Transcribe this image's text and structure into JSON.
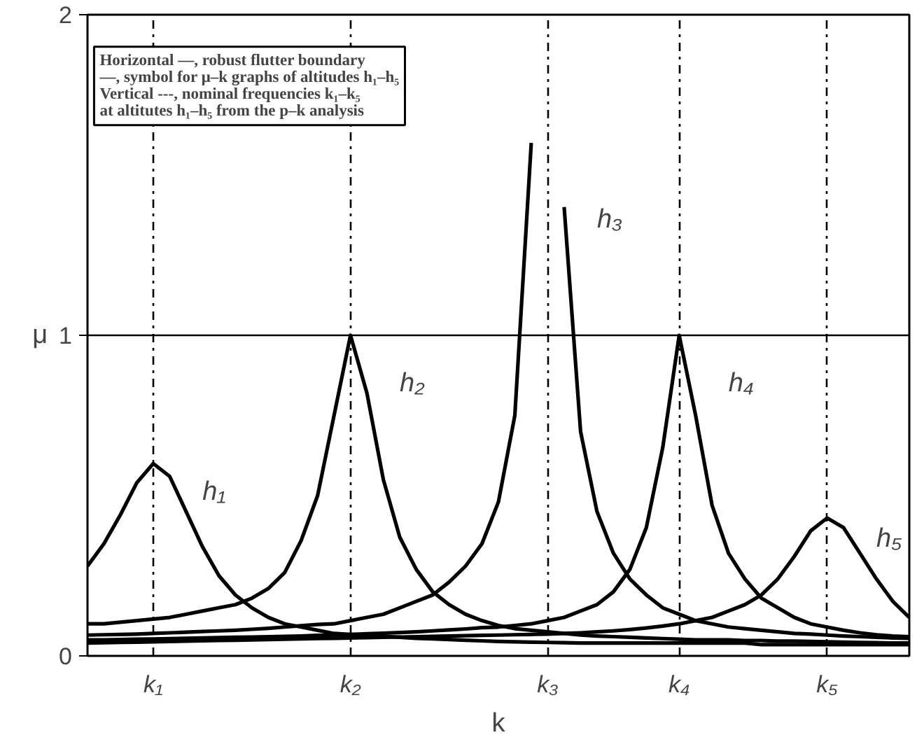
{
  "chart_data": {
    "type": "line",
    "xlabel": "k",
    "ylabel": "μ",
    "categories": [
      null,
      null,
      null,
      null,
      "k₁",
      null,
      null,
      null,
      null,
      null,
      null,
      null,
      null,
      null,
      null,
      null,
      "k₂",
      null,
      null,
      null,
      null,
      null,
      null,
      null,
      null,
      null,
      null,
      null,
      "k₃",
      null,
      null,
      null,
      null,
      null,
      null,
      null,
      "k₄",
      null,
      null,
      null,
      null,
      null,
      null,
      null,
      null,
      "k₅",
      null,
      null,
      null,
      null,
      null
    ],
    "ylim": [
      0,
      2
    ],
    "yticks": [
      0,
      1,
      2
    ],
    "grid": "x",
    "legend": false,
    "marker": "none",
    "line_style": "solid",
    "series": [
      {
        "name": "h₁",
        "color": "#000000",
        "values": [
          0.28,
          0.35,
          0.44,
          0.54,
          0.6,
          0.56,
          0.45,
          0.34,
          0.25,
          0.19,
          0.15,
          0.12,
          0.1,
          0.09,
          0.08,
          0.07,
          0.067,
          0.064,
          0.061,
          0.058,
          0.055,
          0.053,
          0.051,
          0.049,
          0.047,
          0.045,
          0.044,
          0.043,
          0.042,
          0.041,
          0.04,
          0.04,
          0.04,
          0.04,
          0.04,
          0.04,
          0.04,
          0.04,
          0.04,
          0.04,
          0.04,
          0.035,
          0.035,
          0.035,
          0.035,
          0.035,
          0.035,
          0.035,
          0.035,
          0.035,
          0.035
        ]
      },
      {
        "name": "h₂",
        "color": "#000000",
        "values": [
          0.1,
          0.1,
          0.105,
          0.11,
          0.115,
          0.12,
          0.13,
          0.14,
          0.15,
          0.16,
          0.18,
          0.21,
          0.26,
          0.36,
          0.5,
          0.75,
          1.0,
          0.82,
          0.55,
          0.37,
          0.27,
          0.2,
          0.16,
          0.13,
          0.11,
          0.095,
          0.085,
          0.08,
          0.075,
          0.07,
          0.065,
          0.062,
          0.06,
          0.058,
          0.056,
          0.054,
          0.052,
          0.05,
          0.05,
          0.05,
          0.048,
          0.048,
          0.046,
          0.046,
          0.045,
          0.044,
          0.043,
          0.042,
          0.041,
          0.04,
          0.04
        ]
      },
      {
        "name": "h₃",
        "color": "#000000",
        "values": [
          0.065,
          0.066,
          0.067,
          0.068,
          0.07,
          0.072,
          0.074,
          0.076,
          0.078,
          0.08,
          0.083,
          0.086,
          0.09,
          0.094,
          0.098,
          0.1,
          0.11,
          0.12,
          0.13,
          0.15,
          0.17,
          0.19,
          0.23,
          0.28,
          0.35,
          0.48,
          0.75,
          1.6,
          null,
          1.4,
          0.7,
          0.45,
          0.32,
          0.24,
          0.19,
          0.15,
          0.13,
          0.11,
          0.1,
          0.09,
          0.085,
          0.08,
          0.075,
          0.07,
          0.068,
          0.065,
          0.062,
          0.06,
          0.058,
          0.056,
          0.055
        ]
      },
      {
        "name": "h₄",
        "color": "#000000",
        "values": [
          0.05,
          0.05,
          0.051,
          0.052,
          0.053,
          0.054,
          0.055,
          0.056,
          0.057,
          0.058,
          0.059,
          0.06,
          0.061,
          0.062,
          0.064,
          0.065,
          0.067,
          0.069,
          0.071,
          0.073,
          0.075,
          0.078,
          0.081,
          0.084,
          0.088,
          0.09,
          0.095,
          0.1,
          0.11,
          0.12,
          0.14,
          0.16,
          0.2,
          0.27,
          0.4,
          0.65,
          1.0,
          0.75,
          0.47,
          0.32,
          0.24,
          0.18,
          0.15,
          0.12,
          0.1,
          0.09,
          0.08,
          0.072,
          0.066,
          0.062,
          0.06
        ]
      },
      {
        "name": "h₅",
        "color": "#000000",
        "values": [
          0.04,
          0.041,
          0.042,
          0.043,
          0.044,
          0.045,
          0.046,
          0.047,
          0.048,
          0.049,
          0.05,
          0.051,
          0.052,
          0.053,
          0.054,
          0.055,
          0.056,
          0.057,
          0.058,
          0.059,
          0.06,
          0.061,
          0.062,
          0.063,
          0.064,
          0.065,
          0.066,
          0.067,
          0.068,
          0.07,
          0.072,
          0.075,
          0.078,
          0.082,
          0.087,
          0.093,
          0.1,
          0.11,
          0.12,
          0.14,
          0.16,
          0.19,
          0.24,
          0.31,
          0.39,
          0.43,
          0.4,
          0.32,
          0.24,
          0.17,
          0.12
        ]
      }
    ],
    "ref_lines": [
      {
        "axis": "y",
        "value": 1,
        "color": "#000000",
        "line_style": "solid"
      }
    ],
    "annotations": [
      "Horizontal —, robust flutter boundary",
      "—, symbol for μ–k graphs of altitudes h₁–h₅",
      "Vertical ---, nominal frequencies k₁–k₅",
      "at altitutes h₁–h₅ from the p–k analysis"
    ]
  }
}
